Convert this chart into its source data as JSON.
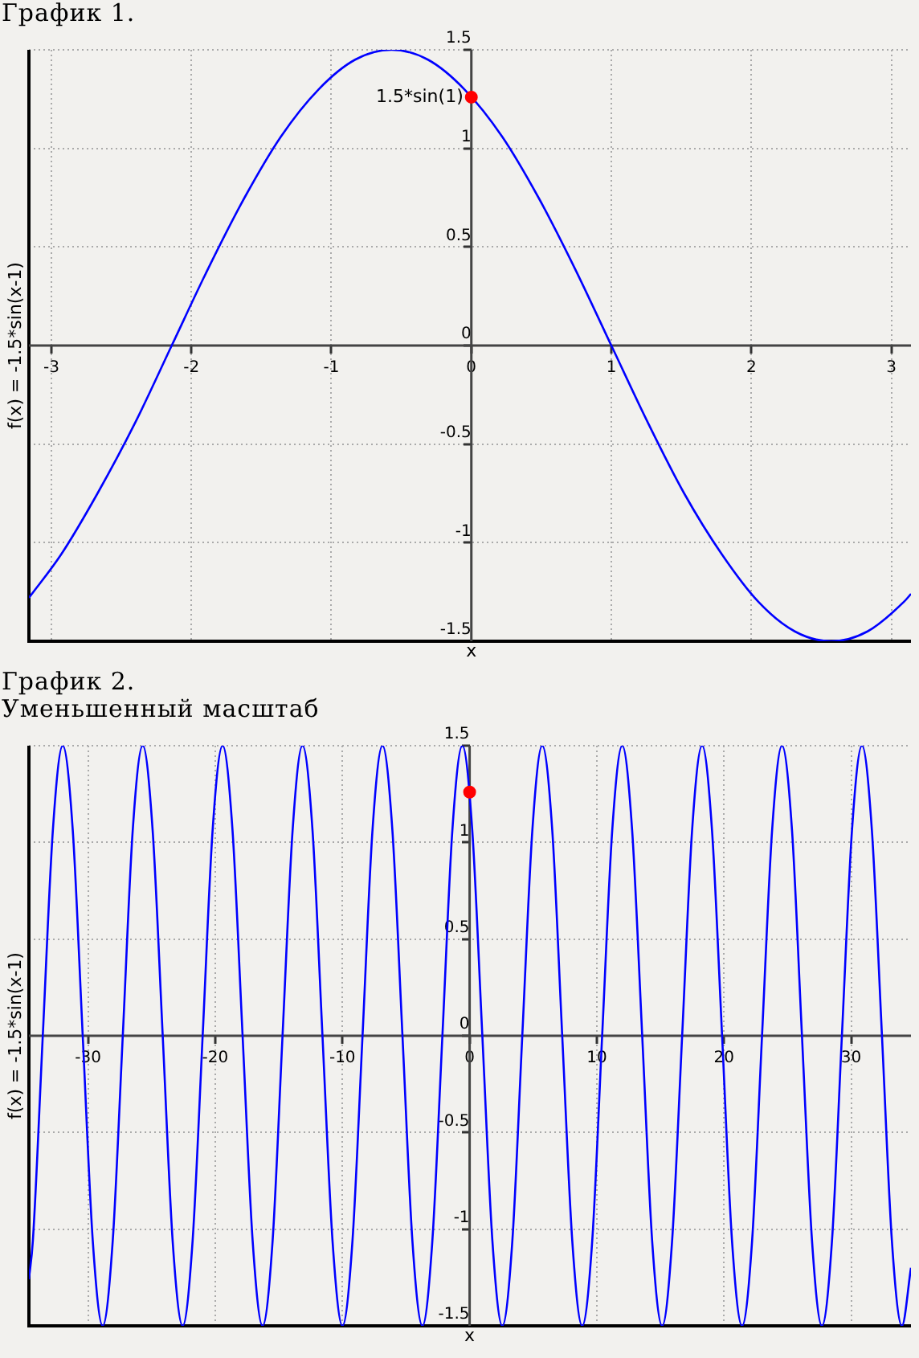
{
  "chart_data": [
    {
      "type": "line",
      "title": "График 1.",
      "xlabel": "x",
      "ylabel": "f(x) = -1.5*sin(x-1)",
      "series": [
        {
          "color": "#0000ff",
          "x": [
            -3.16,
            -2.93,
            -2.67,
            -2.4,
            -2.14,
            -1.88,
            -1.62,
            -1.36,
            -1.09,
            -0.83,
            -0.57,
            -0.31,
            -0.05,
            0.22,
            0.48,
            0.74,
            1,
            1.26,
            1.52,
            1.79,
            2.05,
            2.31,
            2.57,
            2.83,
            3.09,
            3.14
          ],
          "values": [
            -1.28,
            -1.06,
            -0.75,
            -0.39,
            0,
            0.39,
            0.75,
            1.06,
            1.3,
            1.45,
            1.5,
            1.45,
            1.3,
            1.06,
            0.75,
            0.39,
            0,
            -0.39,
            -0.75,
            -1.06,
            -1.3,
            -1.45,
            -1.5,
            -1.45,
            -1.3,
            -1.26
          ]
        },
        {
          "type": "scatter",
          "marker": "circle",
          "color": "#ff0000",
          "x": [
            0
          ],
          "values": [
            1.26
          ]
        }
      ],
      "annotations": [
        {
          "text": "1.5*sin(1)",
          "x": 0,
          "y": 1.26
        }
      ],
      "xlim": [
        -3.16,
        3.14
      ],
      "ylim": [
        -1.5,
        1.5
      ],
      "xticks": [
        -3,
        -2,
        -1,
        0,
        1,
        2,
        3
      ],
      "yticks": [
        -1.5,
        -1,
        -0.5,
        0,
        0.5,
        1,
        1.5
      ],
      "grid": true
    },
    {
      "type": "line",
      "title": "График 2.",
      "subtitle": "Уменьшенный масштаб",
      "xlabel": "x",
      "ylabel": "f(x) = -1.5*sin(x-1)",
      "series": [
        {
          "color": "#0000ff",
          "x": [
            -34.65,
            -34.34,
            -33.56,
            -32.77,
            -31.99,
            -31.2,
            -30.42,
            -29.63,
            -28.85,
            -28.06,
            -27.27,
            -26.49,
            -25.7,
            -24.92,
            -24.13,
            -23.35,
            -22.56,
            -21.78,
            -20.99,
            -20.21,
            -19.42,
            -18.64,
            -17.85,
            -17.06,
            -16.28,
            -15.49,
            -14.71,
            -13.92,
            -13.14,
            -12.35,
            -11.57,
            -10.78,
            -10,
            -9.21,
            -8.42,
            -7.64,
            -6.85,
            -6.07,
            -5.28,
            -4.5,
            -3.71,
            -2.93,
            -2.14,
            -1.36,
            -0.57,
            0.21,
            1,
            1.79,
            2.57,
            3.36,
            4.14,
            4.93,
            5.71,
            6.5,
            7.28,
            8.07,
            8.85,
            9.64,
            10.42,
            11.21,
            12,
            12.78,
            13.57,
            14.35,
            15.14,
            15.92,
            16.71,
            17.49,
            18.28,
            19.06,
            19.85,
            20.63,
            21.42,
            22.21,
            22.99,
            23.78,
            24.56,
            25.35,
            26.13,
            26.92,
            27.7,
            28.49,
            29.27,
            30.06,
            30.85,
            31.63,
            32.42,
            33.2,
            33.99,
            34.7
          ],
          "values": [
            -1.26,
            -1.06,
            0,
            1.06,
            1.5,
            1.06,
            0,
            -1.06,
            -1.5,
            -1.06,
            0,
            1.06,
            1.5,
            1.06,
            0,
            -1.06,
            -1.5,
            -1.06,
            0,
            1.06,
            1.5,
            1.06,
            0,
            -1.06,
            -1.5,
            -1.06,
            0,
            1.06,
            1.5,
            1.06,
            0,
            -1.06,
            -1.5,
            -1.06,
            0,
            1.06,
            1.5,
            1.06,
            0,
            -1.06,
            -1.5,
            -1.06,
            0,
            1.06,
            1.5,
            1.06,
            0,
            -1.06,
            -1.5,
            -1.06,
            0,
            1.06,
            1.5,
            1.06,
            0,
            -1.06,
            -1.5,
            -1.06,
            0,
            1.06,
            1.5,
            1.06,
            0,
            -1.06,
            -1.5,
            -1.06,
            0,
            1.06,
            1.5,
            1.06,
            0,
            -1.06,
            -1.5,
            -1.06,
            0,
            1.06,
            1.5,
            1.06,
            0,
            -1.06,
            -1.5,
            -1.06,
            0,
            1.06,
            1.5,
            1.06,
            0,
            -1.06,
            -1.5,
            -1.2
          ]
        },
        {
          "type": "scatter",
          "marker": "circle",
          "color": "#ff0000",
          "x": [
            0
          ],
          "values": [
            1.26
          ]
        }
      ],
      "xlim": [
        -34.65,
        34.7
      ],
      "ylim": [
        -1.5,
        1.5
      ],
      "xticks": [
        -30,
        -20,
        -10,
        0,
        10,
        20,
        30
      ],
      "yticks": [
        -1.5,
        -1,
        -0.5,
        0,
        0.5,
        1,
        1.5
      ],
      "grid": true
    }
  ]
}
